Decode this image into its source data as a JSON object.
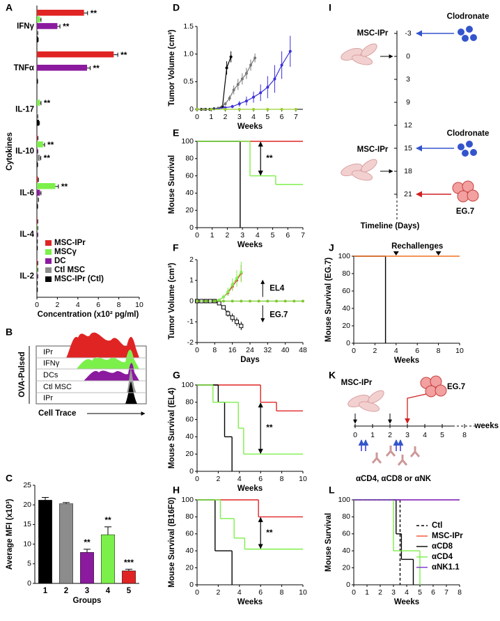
{
  "chart_data": [
    {
      "panel": "A",
      "type": "bar",
      "orientation": "horizontal",
      "categories": [
        "IFNγ",
        "TNFα",
        "IL-17",
        "IL-10",
        "IL-6",
        "IL-4",
        "IL-2"
      ],
      "series": [
        {
          "name": "MSC-IPr",
          "color": "#e02424",
          "values": [
            4.6,
            7.5,
            0,
            0.05,
            0.1,
            0.05,
            0.05
          ],
          "errors": [
            0.35,
            0.4,
            0,
            0.05,
            0.05,
            0.03,
            0.03
          ],
          "significance": [
            "**",
            "**",
            null,
            null,
            null,
            null,
            null
          ]
        },
        {
          "name": "MSCγ",
          "color": "#7cf04a",
          "values": [
            0.3,
            0,
            0.3,
            0.6,
            1.8,
            0.05,
            0.05
          ],
          "errors": [
            0.1,
            0,
            0.1,
            0.15,
            0.3,
            0.03,
            0.03
          ],
          "significance": [
            null,
            null,
            "**",
            "**",
            "**",
            null,
            null
          ]
        },
        {
          "name": "DC",
          "color": "#8b1a9e",
          "values": [
            2.0,
            4.9,
            0,
            0.05,
            0.3,
            0.05,
            0.05
          ],
          "errors": [
            0.25,
            0.3,
            0,
            0.03,
            0.1,
            0.03,
            0.03
          ],
          "significance": [
            "**",
            "**",
            null,
            null,
            null,
            null,
            null
          ]
        },
        {
          "name": "Ctl MSC",
          "color": "#8c8c8c",
          "values": [
            0.05,
            0,
            0.05,
            0.3,
            0.1,
            0.03,
            0.03
          ],
          "errors": [
            0.03,
            0,
            0.03,
            0.08,
            0.05,
            0.02,
            0.02
          ],
          "significance": [
            null,
            null,
            null,
            "**",
            null,
            null,
            null
          ]
        },
        {
          "name": "MSC-IPr (Ctl)",
          "color": "#000000",
          "values": [
            0.1,
            0.05,
            0.2,
            0.05,
            0.05,
            0.03,
            0.03
          ],
          "errors": [
            0.03,
            0.02,
            0.05,
            0.02,
            0.02,
            0.02,
            0.02
          ]
        }
      ],
      "xlim": [
        0,
        10
      ],
      "xticks": [
        0,
        2,
        4,
        6,
        8,
        10
      ],
      "xlabel": "Concentration (x10² pg/ml)",
      "ylabel": "Cytokines",
      "legend": "lower left"
    },
    {
      "panel": "C",
      "type": "bar",
      "categories": [
        "1",
        "2",
        "3",
        "4",
        "5"
      ],
      "values": [
        21.2,
        20.3,
        7.9,
        12.4,
        3.2
      ],
      "errors": [
        0.7,
        0.3,
        0.8,
        2.0,
        0.4
      ],
      "colors": [
        "#000000",
        "#8c8c8c",
        "#8b1a9e",
        "#7cf04a",
        "#e02424"
      ],
      "significance": [
        null,
        null,
        "**",
        "**",
        "***"
      ],
      "ylim": [
        0,
        25
      ],
      "yticks": [
        0,
        5,
        10,
        15,
        20,
        25
      ],
      "xlabel": "Groups",
      "ylabel": "Average MFI (x10³)"
    },
    {
      "panel": "D",
      "type": "line",
      "series": [
        {
          "color": "#000000",
          "marker": "circle",
          "x": [
            0,
            0.3,
            0.6,
            0.9,
            1.2,
            1.5,
            1.8,
            2.1,
            2.4
          ],
          "values": [
            0,
            0,
            0,
            0,
            0.01,
            0.02,
            0.05,
            0.75,
            0.95
          ],
          "errors": [
            0,
            0,
            0,
            0,
            0,
            0.01,
            0.02,
            0.12,
            0.1
          ]
        },
        {
          "color": "#777777",
          "marker": "circle",
          "x": [
            0,
            0.5,
            1,
            1.5,
            2,
            2.3,
            2.6,
            2.9,
            3.2,
            3.5,
            3.8,
            4.1
          ],
          "values": [
            0,
            0,
            0,
            0.02,
            0.1,
            0.2,
            0.35,
            0.45,
            0.55,
            0.65,
            0.8,
            0.93
          ],
          "errors": [
            0,
            0,
            0,
            0.01,
            0.03,
            0.05,
            0.08,
            0.1,
            0.1,
            0.1,
            0.1,
            0.08
          ]
        },
        {
          "color": "#3a2fd8",
          "marker": "circle",
          "x": [
            0,
            1,
            2,
            2.5,
            3,
            3.5,
            4,
            4.5,
            5,
            5.5,
            6,
            6.6
          ],
          "values": [
            0,
            0,
            0.03,
            0.05,
            0.1,
            0.15,
            0.22,
            0.3,
            0.4,
            0.55,
            0.8,
            1.05
          ],
          "errors": [
            0,
            0,
            0.02,
            0.03,
            0.05,
            0.08,
            0.1,
            0.15,
            0.2,
            0.25,
            0.25,
            0.28
          ]
        },
        {
          "color": "#9acd32",
          "marker": "circle",
          "x": [
            0,
            1,
            2,
            3,
            4,
            5,
            6,
            7
          ],
          "values": [
            0,
            0,
            0,
            0,
            0,
            0,
            0,
            0
          ],
          "errors": [
            0,
            0,
            0,
            0,
            0,
            0,
            0,
            0
          ]
        }
      ],
      "xlim": [
        0,
        7.5
      ],
      "xticks": [
        0,
        1,
        2,
        3,
        4,
        5,
        6,
        7
      ],
      "ylim": [
        0,
        1.5
      ],
      "yticks": [
        0,
        0.5,
        {
          "value": 1,
          "label": "1.0"
        },
        1.5
      ],
      "xlabel": "Weeks",
      "ylabel": "Tumor Volume (cm³)"
    },
    {
      "panel": "E",
      "type": "step",
      "series": [
        {
          "color": "#e02424",
          "x": [
            0,
            7
          ],
          "values": [
            100,
            100
          ]
        },
        {
          "color": "#000000",
          "x": [
            0,
            2.85
          ],
          "values": [
            100,
            0
          ]
        },
        {
          "color": "#7cf04a",
          "x": [
            0,
            3.5,
            5.2,
            7
          ],
          "values": [
            100,
            60,
            50,
            50
          ]
        }
      ],
      "xlim": [
        0,
        7
      ],
      "xticks": [
        0,
        1,
        2,
        3,
        4,
        5,
        6,
        7
      ],
      "ylim": [
        0,
        100
      ],
      "yticks": [
        0,
        20,
        40,
        60,
        80,
        100
      ],
      "xlabel": "Weeks",
      "ylabel": "Mouse Survival",
      "annotation": "**"
    },
    {
      "panel": "F",
      "type": "line",
      "series": [
        {
          "color": "#e03030",
          "marker": "circle",
          "x": [
            0,
            2,
            4,
            6,
            8,
            10,
            12,
            14,
            16,
            18,
            20
          ],
          "values": [
            0,
            0,
            0,
            0,
            0,
            0.05,
            0.2,
            0.4,
            0.7,
            1.0,
            1.35
          ],
          "errors": [
            0,
            0,
            0,
            0,
            0,
            0.05,
            0.1,
            0.15,
            0.2,
            0.3,
            0.4
          ]
        },
        {
          "color": "#7cf04a",
          "marker": "circle",
          "x": [
            0,
            2,
            4,
            6,
            8,
            10,
            12,
            14,
            16,
            18,
            20
          ],
          "values": [
            0,
            0,
            0,
            0,
            0,
            0.05,
            0.2,
            0.45,
            0.8,
            1.1,
            1.4
          ],
          "errors": [
            0,
            0,
            0,
            0,
            0,
            0.05,
            0.1,
            0.2,
            0.3,
            0.4,
            0.5
          ]
        },
        {
          "color": "#000000",
          "marker": "square",
          "x": [
            0,
            2,
            4,
            6,
            8,
            10,
            12,
            14,
            16,
            18,
            20
          ],
          "values": [
            0,
            0,
            0,
            0,
            0,
            -0.1,
            -0.3,
            -0.6,
            -0.8,
            -1.0,
            -1.2
          ],
          "errors": [
            0,
            0,
            0,
            0,
            0,
            0.05,
            0.1,
            0.15,
            0.2,
            0.2,
            0.2
          ]
        },
        {
          "color": "#7cc930",
          "marker": "circle",
          "x": [
            0,
            4,
            8,
            12,
            16,
            20,
            24,
            28,
            32,
            36,
            40,
            44,
            48
          ],
          "values": [
            0,
            0,
            0,
            0,
            0,
            0,
            0,
            0,
            0,
            0,
            0,
            0,
            0
          ],
          "errors": [
            0,
            0,
            0,
            0,
            0,
            0,
            0,
            0,
            0,
            0,
            0,
            0,
            0
          ]
        }
      ],
      "xlim": [
        0,
        48
      ],
      "xticks": [
        0,
        8,
        16,
        24,
        32,
        40,
        48
      ],
      "ylim": [
        -2,
        2
      ],
      "yticks": [
        -2,
        -1,
        0,
        1,
        2
      ],
      "xlabel": "Days",
      "ylabel": "Tumor Volume (cm³)",
      "annotations": [
        "EL4",
        "EG.7"
      ]
    },
    {
      "panel": "G",
      "type": "step",
      "series": [
        {
          "color": "#e02424",
          "x": [
            0,
            6,
            7.5,
            10
          ],
          "values": [
            100,
            80,
            70,
            70
          ]
        },
        {
          "color": "#000000",
          "x": [
            0,
            2,
            2.6,
            3.3
          ],
          "values": [
            100,
            80,
            40,
            0
          ]
        },
        {
          "color": "#7cf04a",
          "x": [
            0,
            1.5,
            3.9,
            4.4,
            10
          ],
          "values": [
            100,
            80,
            50,
            20,
            20
          ]
        }
      ],
      "xlim": [
        0,
        10
      ],
      "xticks": [
        0,
        2,
        4,
        6,
        8,
        10
      ],
      "ylim": [
        0,
        100
      ],
      "yticks": [
        0,
        20,
        40,
        60,
        80,
        100
      ],
      "xlabel": "Weeks",
      "ylabel": "Mouse Survival (EL4)",
      "annotation": "**"
    },
    {
      "panel": "H",
      "type": "step",
      "series": [
        {
          "color": "#e02424",
          "x": [
            0,
            5.8,
            10
          ],
          "values": [
            100,
            80,
            80
          ]
        },
        {
          "color": "#000000",
          "x": [
            0,
            1.7,
            3.3
          ],
          "values": [
            100,
            40,
            0
          ]
        },
        {
          "color": "#7cf04a",
          "x": [
            0,
            2.2,
            3.5,
            4.5,
            10
          ],
          "values": [
            100,
            78,
            55,
            42,
            42
          ]
        }
      ],
      "xlim": [
        0,
        10
      ],
      "xticks": [
        0,
        2,
        4,
        6,
        8,
        10
      ],
      "ylim": [
        0,
        100
      ],
      "yticks": [
        0,
        20,
        40,
        60,
        80,
        100
      ],
      "xlabel": "Weeks",
      "ylabel": "Mouse Survival (B16F0)",
      "annotation": "**"
    },
    {
      "panel": "J",
      "type": "step",
      "series": [
        {
          "color": "#000000",
          "x": [
            0,
            3
          ],
          "values": [
            100,
            0
          ]
        },
        {
          "color": "#f07020",
          "x": [
            0,
            10
          ],
          "values": [
            100,
            100
          ]
        }
      ],
      "xlim": [
        0,
        10
      ],
      "xticks": [
        0,
        2,
        4,
        6,
        8,
        10
      ],
      "ylim": [
        0,
        100
      ],
      "yticks": [
        0,
        20,
        40,
        60,
        80,
        100
      ],
      "xlabel": "Weeks",
      "ylabel": "Mouse Survival (EG.7)",
      "markers_label": "Rechallenges",
      "markers": [
        4,
        8
      ]
    },
    {
      "panel": "L",
      "type": "step",
      "series": [
        {
          "name": "Ctl",
          "color": "#000000",
          "dashed": true,
          "x": [
            0,
            3.5
          ],
          "values": [
            100,
            0
          ]
        },
        {
          "name": "MSC-IPr",
          "color": "#f05030",
          "x": [
            0,
            8
          ],
          "values": [
            100,
            100
          ]
        },
        {
          "name": "αCD8",
          "color": "#000000",
          "x": [
            0,
            3.2,
            3.6,
            4.5
          ],
          "values": [
            100,
            60,
            30,
            0
          ]
        },
        {
          "name": "αCD4",
          "color": "#7cf04a",
          "x": [
            0,
            3,
            5
          ],
          "values": [
            100,
            40,
            0
          ]
        },
        {
          "name": "αNK1.1",
          "color": "#7b2fd0",
          "x": [
            0,
            8
          ],
          "values": [
            100,
            100
          ]
        }
      ],
      "xlim": [
        0,
        8
      ],
      "xticks": [
        0,
        1,
        2,
        3,
        4,
        5,
        6,
        7,
        8
      ],
      "ylim": [
        0,
        100
      ],
      "yticks": [
        0,
        20,
        40,
        60,
        80,
        100
      ],
      "xlabel": "Weeks",
      "ylabel": "Mouse Survival",
      "legend": "right"
    }
  ],
  "panel_b": {
    "letter": "B",
    "group": "OVA-Pulsed",
    "rows": [
      "IPr",
      "IFNγ",
      "DCs",
      "Ctl MSC",
      "IPr"
    ],
    "xlabel": "Cell Trace"
  },
  "panel_i": {
    "letter": "I",
    "cells": [
      "MSC-IPr",
      "MSC-IPr"
    ],
    "clodronate": [
      "Clodronate",
      "Clodronate"
    ],
    "tumor": "EG.7",
    "timeline": [
      "-3",
      "0",
      "3",
      "9",
      "12",
      "15",
      "18",
      "21"
    ],
    "axis_label": "Timeline (Days)"
  },
  "panel_k": {
    "letter": "K",
    "cells": "MSC-IPr",
    "tumor": "EG.7",
    "ticks": [
      "0",
      "1",
      "2",
      "3",
      "4",
      "5",
      "8"
    ],
    "unit": "weeks",
    "antibodies": "αCD4, αCD8 or αNK"
  }
}
